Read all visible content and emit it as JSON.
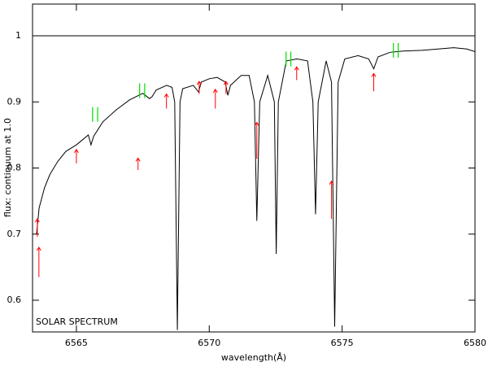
{
  "chart_data": {
    "type": "line",
    "xlabel": "wavelength(Å)",
    "ylabel": "flux: continuum at 1.0",
    "annotation": "SOLAR SPECTRUM",
    "xlim": [
      6563.35,
      6580
    ],
    "ylim": [
      0.552,
      1.048
    ],
    "xticks": [
      6565,
      6570,
      6575,
      6580
    ],
    "yticks": [
      0.6,
      0.7,
      0.8,
      0.9,
      1
    ],
    "continuum": 1,
    "series": [
      {
        "color": "#000000",
        "x": [
          6563.5,
          6563.6,
          6563.8,
          6564.0,
          6564.3,
          6564.6,
          6565.0,
          6565.3,
          6565.45,
          6565.55,
          6565.65,
          6566.0,
          6566.5,
          6567.0,
          6567.5,
          6567.75,
          6567.85,
          6568.0,
          6568.4,
          6568.6,
          6568.7,
          6568.8,
          6568.9,
          6569.0,
          6569.4,
          6569.6,
          6569.7,
          6570.0,
          6570.3,
          6570.6,
          6570.7,
          6570.8,
          6571.2,
          6571.5,
          6571.7,
          6571.79,
          6571.9,
          6572.2,
          6572.45,
          6572.52,
          6572.6,
          6572.9,
          6573.3,
          6573.7,
          6573.9,
          6574.0,
          6574.1,
          6574.4,
          6574.6,
          6574.72,
          6574.85,
          6575.1,
          6575.6,
          6576.0,
          6576.19,
          6576.35,
          6576.8,
          6577.3,
          6578.0,
          6578.6,
          6579.2,
          6579.7,
          6580.0
        ],
        "values": [
          0.7,
          0.74,
          0.77,
          0.79,
          0.81,
          0.825,
          0.835,
          0.845,
          0.85,
          0.835,
          0.848,
          0.87,
          0.888,
          0.903,
          0.913,
          0.905,
          0.908,
          0.918,
          0.925,
          0.922,
          0.9,
          0.555,
          0.9,
          0.92,
          0.925,
          0.915,
          0.93,
          0.935,
          0.937,
          0.93,
          0.91,
          0.925,
          0.94,
          0.94,
          0.9,
          0.72,
          0.9,
          0.94,
          0.9,
          0.67,
          0.9,
          0.962,
          0.965,
          0.962,
          0.9,
          0.73,
          0.9,
          0.962,
          0.93,
          0.56,
          0.93,
          0.965,
          0.97,
          0.965,
          0.95,
          0.968,
          0.975,
          0.977,
          0.978,
          0.98,
          0.982,
          0.98,
          0.976
        ]
      }
    ],
    "red_arrows": {
      "color": "#ff0000",
      "x": [
        6563.53,
        6563.59,
        6565.0,
        6567.32,
        6568.39,
        6569.62,
        6570.23,
        6570.63,
        6571.79,
        6573.29,
        6574.6,
        6576.19
      ],
      "tip": [
        0.723,
        0.68,
        0.828,
        0.815,
        0.912,
        0.931,
        0.919,
        0.931,
        0.869,
        0.953,
        0.78,
        0.943
      ],
      "tail": [
        0.696,
        0.635,
        0.807,
        0.797,
        0.89,
        0.912,
        0.89,
        0.912,
        0.814,
        0.933,
        0.723,
        0.916
      ]
    },
    "green_marks": {
      "color": "#00dd00",
      "x": [
        6565.61,
        6565.8,
        6567.38,
        6567.57,
        6572.89,
        6573.07,
        6576.93,
        6577.11
      ],
      "y": [
        0.881,
        0.881,
        0.917,
        0.917,
        0.965,
        0.965,
        0.978,
        0.978
      ]
    }
  }
}
